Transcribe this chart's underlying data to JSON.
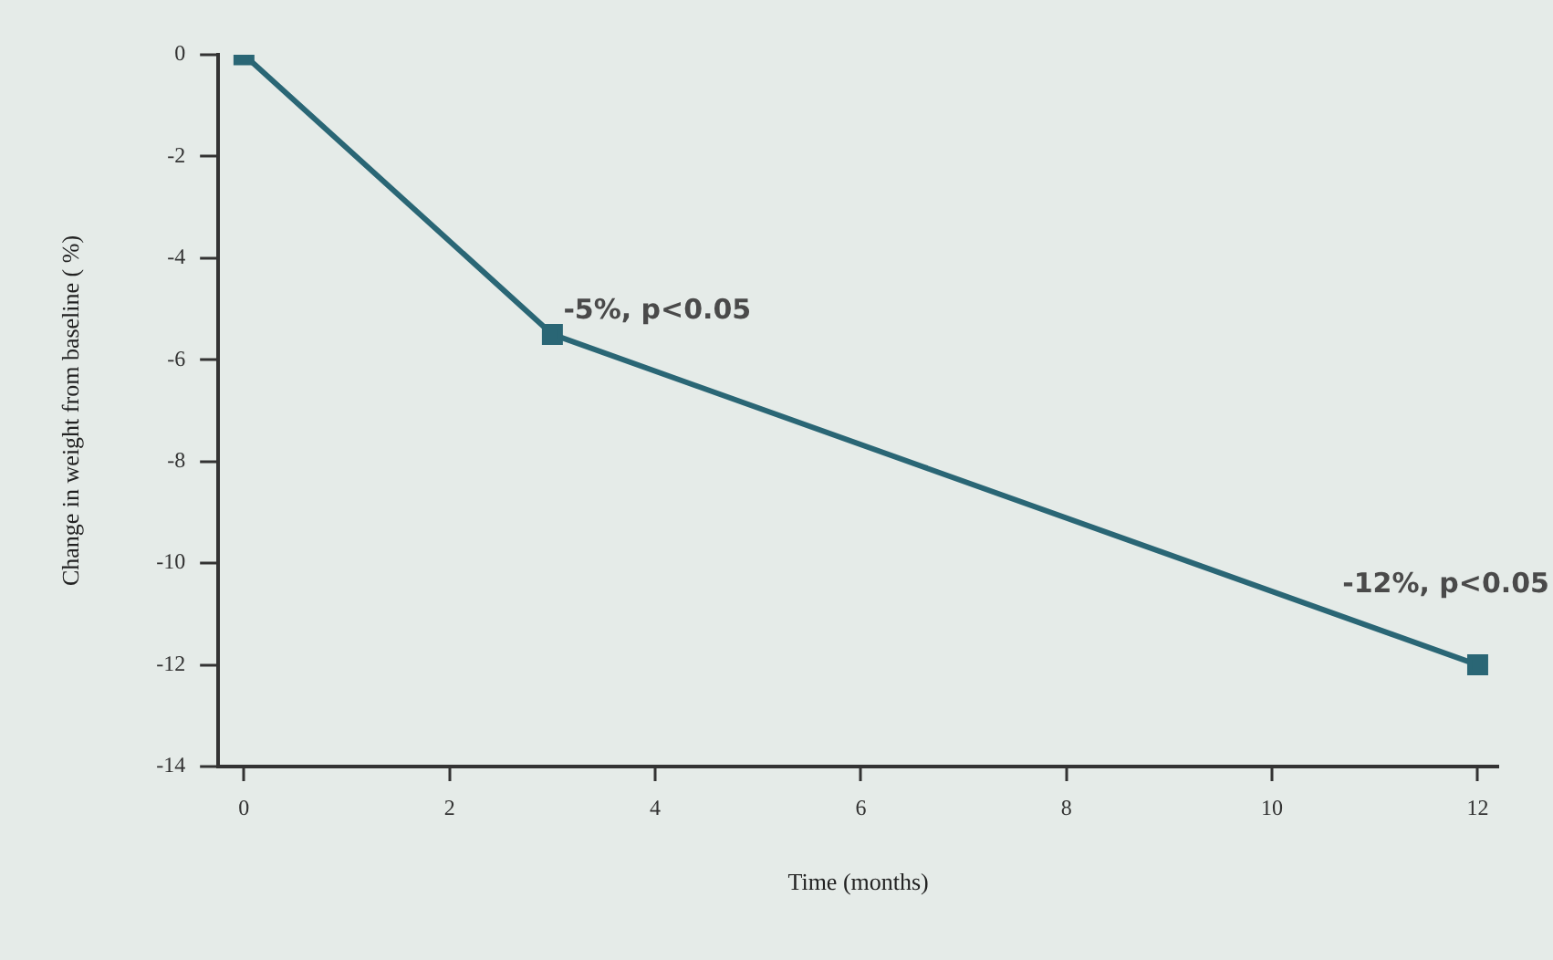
{
  "chart_data": {
    "type": "line",
    "xlabel": "Time (months)",
    "ylabel": "Change in weight from baseline ( %)",
    "x": [
      0,
      3,
      12
    ],
    "series": [
      {
        "color": "#2a6675",
        "values": [
          0,
          -5.5,
          -12
        ]
      }
    ],
    "xlim": [
      -0.25,
      12.2
    ],
    "xticks": [
      0,
      2,
      4,
      6,
      8,
      10,
      12
    ],
    "ylim": [
      -14,
      0
    ],
    "yticks": [
      -14,
      -12,
      -10,
      -8,
      -6,
      -4,
      -2,
      0
    ],
    "grid": false,
    "legend": false,
    "marker": "square",
    "line_style": "solid",
    "annotations": [
      {
        "text": "-5%, p<0.05",
        "x": 3,
        "y": -5.5
      },
      {
        "text": "-12%, p<0.05",
        "x": 12,
        "y": -12
      }
    ]
  }
}
